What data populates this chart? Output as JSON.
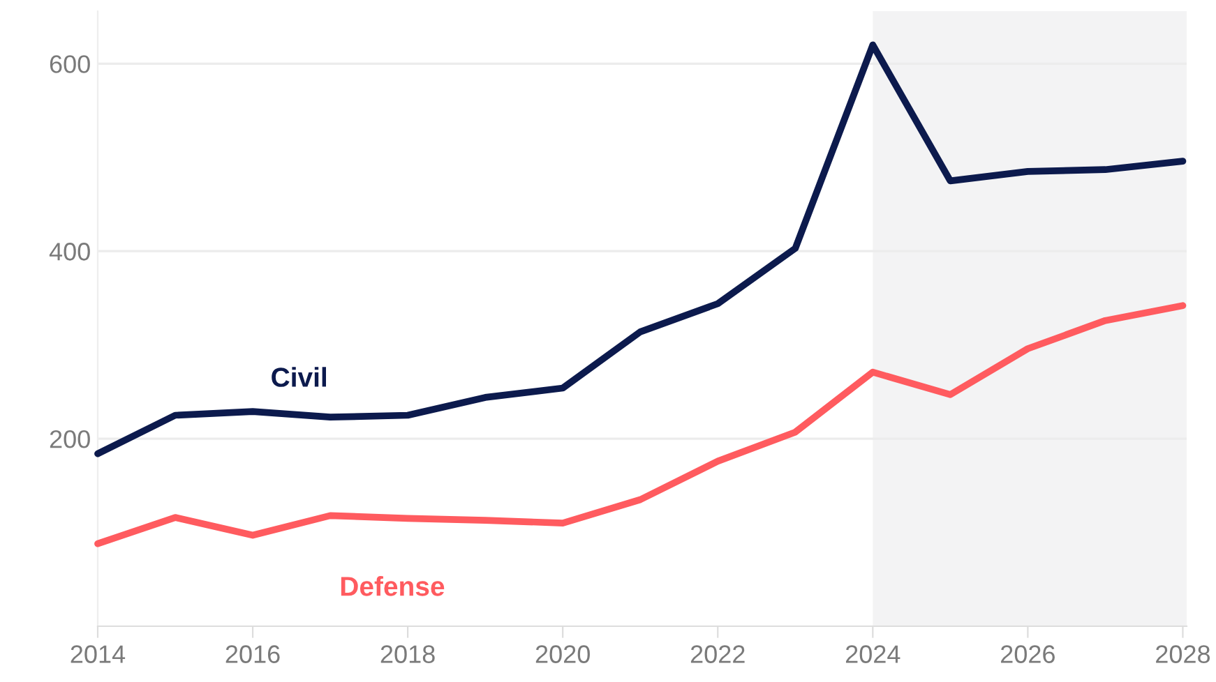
{
  "chart_data": {
    "type": "line",
    "x": [
      2014,
      2015,
      2016,
      2017,
      2018,
      2019,
      2020,
      2021,
      2022,
      2023,
      2024,
      2025,
      2026,
      2027,
      2028
    ],
    "series": [
      {
        "name": "Civil",
        "color": "#0c1a4d",
        "values": [
          184,
          225,
          229,
          223,
          225,
          244,
          254,
          314,
          344,
          403,
          620,
          475,
          485,
          487,
          496
        ]
      },
      {
        "name": "Defense",
        "color": "#ff5b5f",
        "values": [
          88,
          116,
          97,
          118,
          115,
          113,
          110,
          135,
          176,
          207,
          271,
          247,
          296,
          326,
          342
        ]
      }
    ],
    "xlim": [
      2014,
      2028.05
    ],
    "xticks": [
      2014,
      2016,
      2018,
      2020,
      2022,
      2024,
      2026,
      2028
    ],
    "ylim": [
      0,
      656
    ],
    "yticks": [
      200,
      400,
      600
    ],
    "bands": [
      {
        "axis": "x",
        "from": 2024,
        "to": 2028.05,
        "color": "#f3f3f4"
      }
    ],
    "grid": "y",
    "legend": false,
    "marker": "none",
    "line_style": "solid"
  }
}
